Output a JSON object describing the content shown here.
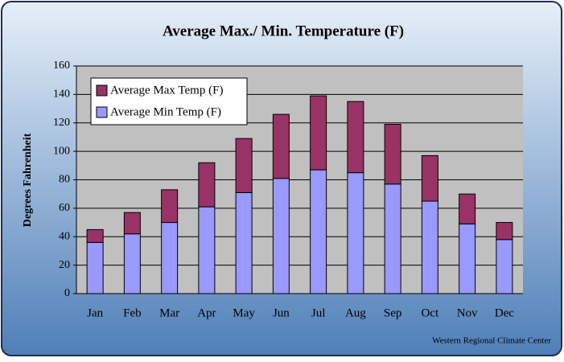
{
  "chart_data": {
    "type": "stacked_bar",
    "title": "Average Max./ Min. Temperature (F)",
    "y_label": "Degrees Fahrenheit",
    "source": "Western Regional Climate Center",
    "categories": [
      "Jan",
      "Feb",
      "Mar",
      "Apr",
      "May",
      "Jun",
      "Jul",
      "Aug",
      "Sep",
      "Oct",
      "Nov",
      "Dec"
    ],
    "series": [
      {
        "name": "Average Min Temp (F)",
        "color": "#9999ff",
        "values": [
          36,
          42,
          50,
          61,
          71,
          81,
          87,
          85,
          77,
          65,
          49,
          38
        ]
      },
      {
        "name": "Average Max Temp (F)",
        "color": "#993366",
        "values": [
          9,
          15,
          23,
          31,
          38,
          45,
          52,
          50,
          42,
          32,
          21,
          12
        ]
      }
    ],
    "ylim": [
      0,
      160
    ],
    "yticks": [
      0,
      20,
      40,
      60,
      80,
      100,
      120,
      140,
      160
    ],
    "grid": true,
    "legend": "top-left"
  }
}
